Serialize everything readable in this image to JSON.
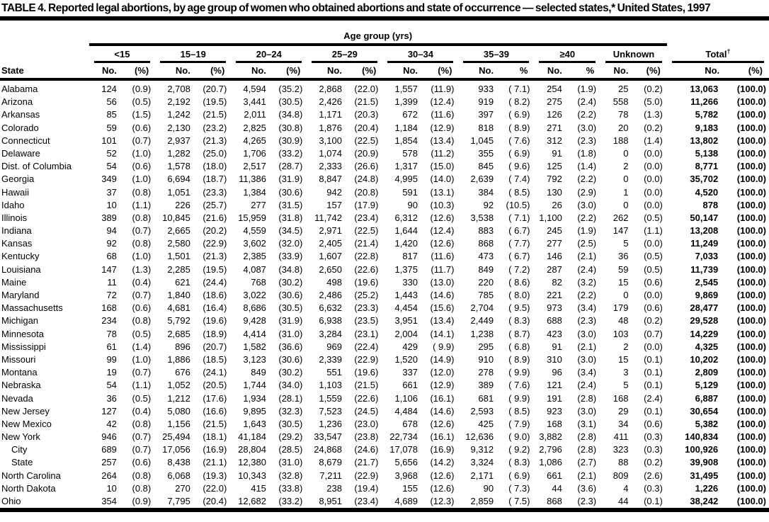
{
  "page": {
    "title": "TABLE 4. Reported legal abortions, by age group of women who obtained abortions and state of occurrence — selected states,* United States, 1997"
  },
  "table": {
    "spanner": "Age group (yrs)",
    "state_header": "State",
    "groups": [
      {
        "label": "<15",
        "no": "No.",
        "pct": "(%)"
      },
      {
        "label": "15–19",
        "no": "No.",
        "pct": "(%)"
      },
      {
        "label": "20–24",
        "no": "No.",
        "pct": "(%)"
      },
      {
        "label": "25–29",
        "no": "No.",
        "pct": "(%)"
      },
      {
        "label": "30–34",
        "no": "No.",
        "pct": "(%)"
      },
      {
        "label": "35–39",
        "no": "No.",
        "pct": "%"
      },
      {
        "label": "≥40",
        "no": "No.",
        "pct": "%"
      },
      {
        "label": "Unknown",
        "no": "No.",
        "pct": "(%)"
      }
    ],
    "total": {
      "label": "Total",
      "sup": "†",
      "no": "No.",
      "pct": "(%)"
    },
    "rows": [
      {
        "state": "Alabama",
        "indent": false,
        "cells": [
          "124",
          "(0.9)",
          "2,708",
          "(20.7)",
          "4,594",
          "(35.2)",
          "2,868",
          "(22.0)",
          "1,557",
          "(11.9)",
          "933",
          "( 7.1)",
          "254",
          "(1.9)",
          "25",
          "(0.2)",
          "13,063",
          "(100.0)"
        ]
      },
      {
        "state": "Arizona",
        "indent": false,
        "cells": [
          "56",
          "(0.5)",
          "2,192",
          "(19.5)",
          "3,441",
          "(30.5)",
          "2,426",
          "(21.5)",
          "1,399",
          "(12.4)",
          "919",
          "( 8.2)",
          "275",
          "(2.4)",
          "558",
          "(5.0)",
          "11,266",
          "(100.0)"
        ]
      },
      {
        "state": "Arkansas",
        "indent": false,
        "cells": [
          "85",
          "(1.5)",
          "1,242",
          "(21.5)",
          "2,011",
          "(34.8)",
          "1,171",
          "(20.3)",
          "672",
          "(11.6)",
          "397",
          "( 6.9)",
          "126",
          "(2.2)",
          "78",
          "(1.3)",
          "5,782",
          "(100.0)"
        ]
      },
      {
        "state": "Colorado",
        "indent": false,
        "cells": [
          "59",
          "(0.6)",
          "2,130",
          "(23.2)",
          "2,825",
          "(30.8)",
          "1,876",
          "(20.4)",
          "1,184",
          "(12.9)",
          "818",
          "( 8.9)",
          "271",
          "(3.0)",
          "20",
          "(0.2)",
          "9,183",
          "(100.0)"
        ]
      },
      {
        "state": "Connecticut",
        "indent": false,
        "cells": [
          "101",
          "(0.7)",
          "2,937",
          "(21.3)",
          "4,265",
          "(30.9)",
          "3,100",
          "(22.5)",
          "1,854",
          "(13.4)",
          "1,045",
          "( 7.6)",
          "312",
          "(2.3)",
          "188",
          "(1.4)",
          "13,802",
          "(100.0)"
        ]
      },
      {
        "state": "Delaware",
        "indent": false,
        "cells": [
          "52",
          "(1.0)",
          "1,282",
          "(25.0)",
          "1,706",
          "(33.2)",
          "1,074",
          "(20.9)",
          "578",
          "(11.2)",
          "355",
          "( 6.9)",
          "91",
          "(1.8)",
          "0",
          "(0.0)",
          "5,138",
          "(100.0)"
        ]
      },
      {
        "state": "Dist. of Columbia",
        "indent": false,
        "cells": [
          "54",
          "(0.6)",
          "1,578",
          "(18.0)",
          "2,517",
          "(28.7)",
          "2,333",
          "(26.6)",
          "1,317",
          "(15.0)",
          "845",
          "( 9.6)",
          "125",
          "(1.4)",
          "2",
          "(0.0)",
          "8,771",
          "(100.0)"
        ]
      },
      {
        "state": "Georgia",
        "indent": false,
        "cells": [
          "349",
          "(1.0)",
          "6,694",
          "(18.7)",
          "11,386",
          "(31.9)",
          "8,847",
          "(24.8)",
          "4,995",
          "(14.0)",
          "2,639",
          "( 7.4)",
          "792",
          "(2.2)",
          "0",
          "(0.0)",
          "35,702",
          "(100.0)"
        ]
      },
      {
        "state": "Hawaii",
        "indent": false,
        "cells": [
          "37",
          "(0.8)",
          "1,051",
          "(23.3)",
          "1,384",
          "(30.6)",
          "942",
          "(20.8)",
          "591",
          "(13.1)",
          "384",
          "( 8.5)",
          "130",
          "(2.9)",
          "1",
          "(0.0)",
          "4,520",
          "(100.0)"
        ]
      },
      {
        "state": "Idaho",
        "indent": false,
        "cells": [
          "10",
          "(1.1)",
          "226",
          "(25.7)",
          "277",
          "(31.5)",
          "157",
          "(17.9)",
          "90",
          "(10.3)",
          "92",
          "(10.5)",
          "26",
          "(3.0)",
          "0",
          "(0.0)",
          "878",
          "(100.0)"
        ]
      },
      {
        "state": "Illinois",
        "indent": false,
        "cells": [
          "389",
          "(0.8)",
          "10,845",
          "(21.6)",
          "15,959",
          "(31.8)",
          "11,742",
          "(23.4)",
          "6,312",
          "(12.6)",
          "3,538",
          "( 7.1)",
          "1,100",
          "(2.2)",
          "262",
          "(0.5)",
          "50,147",
          "(100.0)"
        ]
      },
      {
        "state": "Indiana",
        "indent": false,
        "cells": [
          "94",
          "(0.7)",
          "2,665",
          "(20.2)",
          "4,559",
          "(34.5)",
          "2,971",
          "(22.5)",
          "1,644",
          "(12.4)",
          "883",
          "( 6.7)",
          "245",
          "(1.9)",
          "147",
          "(1.1)",
          "13,208",
          "(100.0)"
        ]
      },
      {
        "state": "Kansas",
        "indent": false,
        "cells": [
          "92",
          "(0.8)",
          "2,580",
          "(22.9)",
          "3,602",
          "(32.0)",
          "2,405",
          "(21.4)",
          "1,420",
          "(12.6)",
          "868",
          "( 7.7)",
          "277",
          "(2.5)",
          "5",
          "(0.0)",
          "11,249",
          "(100.0)"
        ]
      },
      {
        "state": "Kentucky",
        "indent": false,
        "cells": [
          "68",
          "(1.0)",
          "1,501",
          "(21.3)",
          "2,385",
          "(33.9)",
          "1,607",
          "(22.8)",
          "817",
          "(11.6)",
          "473",
          "( 6.7)",
          "146",
          "(2.1)",
          "36",
          "(0.5)",
          "7,033",
          "(100.0)"
        ]
      },
      {
        "state": "Louisiana",
        "indent": false,
        "cells": [
          "147",
          "(1.3)",
          "2,285",
          "(19.5)",
          "4,087",
          "(34.8)",
          "2,650",
          "(22.6)",
          "1,375",
          "(11.7)",
          "849",
          "( 7.2)",
          "287",
          "(2.4)",
          "59",
          "(0.5)",
          "11,739",
          "(100.0)"
        ]
      },
      {
        "state": "Maine",
        "indent": false,
        "cells": [
          "11",
          "(0.4)",
          "621",
          "(24.4)",
          "768",
          "(30.2)",
          "498",
          "(19.6)",
          "330",
          "(13.0)",
          "220",
          "( 8.6)",
          "82",
          "(3.2)",
          "15",
          "(0.6)",
          "2,545",
          "(100.0)"
        ]
      },
      {
        "state": "Maryland",
        "indent": false,
        "cells": [
          "72",
          "(0.7)",
          "1,840",
          "(18.6)",
          "3,022",
          "(30.6)",
          "2,486",
          "(25.2)",
          "1,443",
          "(14.6)",
          "785",
          "( 8.0)",
          "221",
          "(2.2)",
          "0",
          "(0.0)",
          "9,869",
          "(100.0)"
        ]
      },
      {
        "state": "Massachusetts",
        "indent": false,
        "cells": [
          "168",
          "(0.6)",
          "4,681",
          "(16.4)",
          "8,686",
          "(30.5)",
          "6,632",
          "(23.3)",
          "4,454",
          "(15.6)",
          "2,704",
          "( 9.5)",
          "973",
          "(3.4)",
          "179",
          "(0.6)",
          "28,477",
          "(100.0)"
        ]
      },
      {
        "state": "Michigan",
        "indent": false,
        "cells": [
          "234",
          "(0.8)",
          "5,792",
          "(19.6)",
          "9,428",
          "(31.9)",
          "6,938",
          "(23.5)",
          "3,951",
          "(13.4)",
          "2,449",
          "( 8.3)",
          "688",
          "(2.3)",
          "48",
          "(0.2)",
          "29,528",
          "(100.0)"
        ]
      },
      {
        "state": "Minnesota",
        "indent": false,
        "cells": [
          "78",
          "(0.5)",
          "2,685",
          "(18.9)",
          "4,414",
          "(31.0)",
          "3,284",
          "(23.1)",
          "2,004",
          "(14.1)",
          "1,238",
          "( 8.7)",
          "423",
          "(3.0)",
          "103",
          "(0.7)",
          "14,229",
          "(100.0)"
        ]
      },
      {
        "state": "Mississippi",
        "indent": false,
        "cells": [
          "61",
          "(1.4)",
          "896",
          "(20.7)",
          "1,582",
          "(36.6)",
          "969",
          "(22.4)",
          "429",
          "( 9.9)",
          "295",
          "( 6.8)",
          "91",
          "(2.1)",
          "2",
          "(0.0)",
          "4,325",
          "(100.0)"
        ]
      },
      {
        "state": "Missouri",
        "indent": false,
        "cells": [
          "99",
          "(1.0)",
          "1,886",
          "(18.5)",
          "3,123",
          "(30.6)",
          "2,339",
          "(22.9)",
          "1,520",
          "(14.9)",
          "910",
          "( 8.9)",
          "310",
          "(3.0)",
          "15",
          "(0.1)",
          "10,202",
          "(100.0)"
        ]
      },
      {
        "state": "Montana",
        "indent": false,
        "cells": [
          "19",
          "(0.7)",
          "676",
          "(24.1)",
          "849",
          "(30.2)",
          "551",
          "(19.6)",
          "337",
          "(12.0)",
          "278",
          "( 9.9)",
          "96",
          "(3.4)",
          "3",
          "(0.1)",
          "2,809",
          "(100.0)"
        ]
      },
      {
        "state": "Nebraska",
        "indent": false,
        "cells": [
          "54",
          "(1.1)",
          "1,052",
          "(20.5)",
          "1,744",
          "(34.0)",
          "1,103",
          "(21.5)",
          "661",
          "(12.9)",
          "389",
          "( 7.6)",
          "121",
          "(2.4)",
          "5",
          "(0.1)",
          "5,129",
          "(100.0)"
        ]
      },
      {
        "state": "Nevada",
        "indent": false,
        "cells": [
          "36",
          "(0.5)",
          "1,212",
          "(17.6)",
          "1,934",
          "(28.1)",
          "1,559",
          "(22.6)",
          "1,106",
          "(16.1)",
          "681",
          "( 9.9)",
          "191",
          "(2.8)",
          "168",
          "(2.4)",
          "6,887",
          "(100.0)"
        ]
      },
      {
        "state": "New Jersey",
        "indent": false,
        "cells": [
          "127",
          "(0.4)",
          "5,080",
          "(16.6)",
          "9,895",
          "(32.3)",
          "7,523",
          "(24.5)",
          "4,484",
          "(14.6)",
          "2,593",
          "( 8.5)",
          "923",
          "(3.0)",
          "29",
          "(0.1)",
          "30,654",
          "(100.0)"
        ]
      },
      {
        "state": "New Mexico",
        "indent": false,
        "cells": [
          "42",
          "(0.8)",
          "1,156",
          "(21.5)",
          "1,643",
          "(30.5)",
          "1,236",
          "(23.0)",
          "678",
          "(12.6)",
          "425",
          "( 7.9)",
          "168",
          "(3.1)",
          "34",
          "(0.6)",
          "5,382",
          "(100.0)"
        ]
      },
      {
        "state": "New York",
        "indent": false,
        "cells": [
          "946",
          "(0.7)",
          "25,494",
          "(18.1)",
          "41,184",
          "(29.2)",
          "33,547",
          "(23.8)",
          "22,734",
          "(16.1)",
          "12,636",
          "( 9.0)",
          "3,882",
          "(2.8)",
          "411",
          "(0.3)",
          "140,834",
          "(100.0)"
        ]
      },
      {
        "state": "City",
        "indent": true,
        "cells": [
          "689",
          "(0.7)",
          "17,056",
          "(16.9)",
          "28,804",
          "(28.5)",
          "24,868",
          "(24.6)",
          "17,078",
          "(16.9)",
          "9,312",
          "( 9.2)",
          "2,796",
          "(2.8)",
          "323",
          "(0.3)",
          "100,926",
          "(100.0)"
        ]
      },
      {
        "state": "State",
        "indent": true,
        "cells": [
          "257",
          "(0.6)",
          "8,438",
          "(21.1)",
          "12,380",
          "(31.0)",
          "8,679",
          "(21.7)",
          "5,656",
          "(14.2)",
          "3,324",
          "( 8.3)",
          "1,086",
          "(2.7)",
          "88",
          "(0.2)",
          "39,908",
          "(100.0)"
        ]
      },
      {
        "state": "North Carolina",
        "indent": false,
        "cells": [
          "264",
          "(0.8)",
          "6,068",
          "(19.3)",
          "10,343",
          "(32.8)",
          "7,211",
          "(22.9)",
          "3,968",
          "(12.6)",
          "2,171",
          "( 6.9)",
          "661",
          "(2.1)",
          "809",
          "(2.6)",
          "31,495",
          "(100.0)"
        ]
      },
      {
        "state": "North Dakota",
        "indent": false,
        "cells": [
          "10",
          "(0.8)",
          "270",
          "(22.0)",
          "415",
          "(33.8)",
          "238",
          "(19.4)",
          "155",
          "(12.6)",
          "90",
          "( 7.3)",
          "44",
          "(3.6)",
          "4",
          "(0.3)",
          "1,226",
          "(100.0)"
        ]
      },
      {
        "state": "Ohio",
        "indent": false,
        "cells": [
          "354",
          "(0.9)",
          "7,795",
          "(20.4)",
          "12,682",
          "(33.2)",
          "8,951",
          "(23.4)",
          "4,689",
          "(12.3)",
          "2,859",
          "( 7.5)",
          "868",
          "(2.3)",
          "44",
          "(0.1)",
          "38,242",
          "(100.0)"
        ]
      }
    ]
  }
}
